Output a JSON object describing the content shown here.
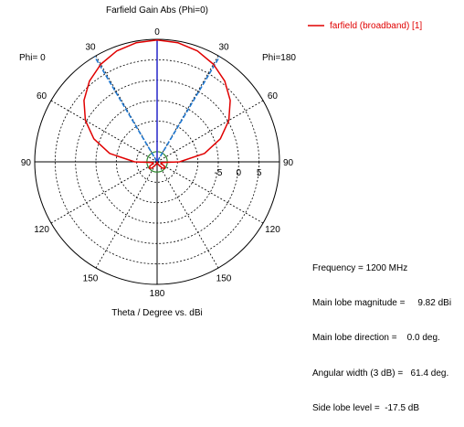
{
  "chart_data": {
    "type": "polar-line",
    "title": "Farfield Gain Abs (Phi=0)",
    "xlabel": "Theta / Degree vs. dBi",
    "left_label": "Phi=  0",
    "right_label": "Phi=180",
    "angle_labels": [
      "0",
      "30",
      "60",
      "90",
      "120",
      "150",
      "180",
      "150",
      "120",
      "90",
      "60",
      "30"
    ],
    "radial_tick_labels": [
      "-5",
      "0",
      "5"
    ],
    "radial_range_dbi": [
      -20,
      10
    ],
    "legend": {
      "label": "farfield (broadband) [1]",
      "color": "#e00000",
      "position": "top-right"
    },
    "series": [
      {
        "name": "farfield (broadband) [1]",
        "color": "#e00000",
        "theta_deg": [
          0,
          10,
          20,
          30,
          40,
          50,
          60,
          70,
          80,
          90,
          100,
          110,
          120,
          130,
          140,
          150,
          160,
          170,
          180
        ],
        "gain_dbi": [
          9.82,
          9.6,
          8.9,
          7.6,
          5.8,
          3.4,
          0.3,
          -3.5,
          -8.2,
          -14.5,
          -19,
          -19,
          -18,
          -17.5,
          -18,
          -19,
          -19.5,
          -19.8,
          -20
        ]
      }
    ],
    "main_lobe_direction_deg": 0,
    "beamwidth_lines_deg": [
      -30.7,
      30.7
    ],
    "beamwidth_color": "#1f77d0",
    "main_lobe_color": "#3333cc",
    "sidelobe_circle_dbi": -17.5,
    "sidelobe_color": "#2e8b2e",
    "summary": [
      {
        "label": "Frequency = 1200 MHz"
      },
      {
        "label": "Main lobe magnitude =     9.82 dBi"
      },
      {
        "label": "Main lobe direction =    0.0 deg."
      },
      {
        "label": "Angular width (3 dB) =   61.4 deg."
      },
      {
        "label": "Side lobe level =  -17.5 dB"
      }
    ]
  }
}
